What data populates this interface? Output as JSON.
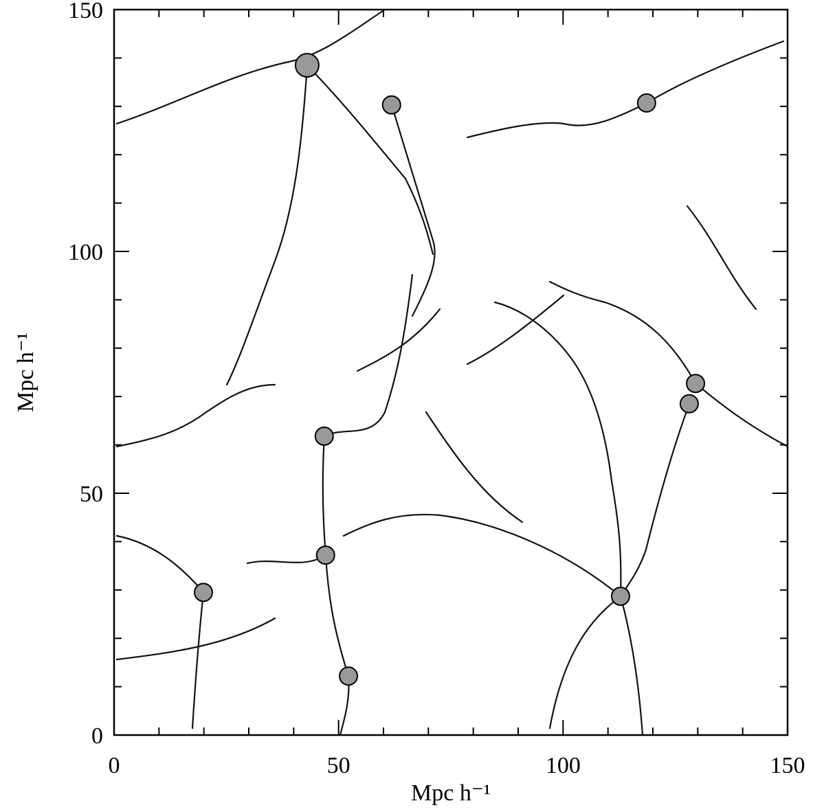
{
  "chart_data": {
    "type": "scatter",
    "xlabel": "Mpc h⁻¹",
    "ylabel": "Mpc h⁻¹",
    "xlim": [
      0,
      150
    ],
    "ylim": [
      0,
      150
    ],
    "xticks": [
      0,
      50,
      100,
      150
    ],
    "yticks": [
      0,
      50,
      100,
      150
    ],
    "xminorticks": [
      10,
      20,
      30,
      40,
      60,
      70,
      80,
      90,
      110,
      120,
      130,
      140
    ],
    "yminorticks": [
      10,
      20,
      30,
      40,
      60,
      70,
      80,
      90,
      110,
      120,
      130,
      140
    ],
    "series": [
      {
        "color": "#999999",
        "x": [
          43.0,
          61.8,
          118.6,
          129.5,
          128.1,
          46.8,
          47.1,
          19.9,
          112.8,
          52.2
        ],
        "values": [
          138.5,
          130.3,
          130.7,
          72.7,
          68.5,
          61.8,
          37.2,
          29.5,
          28.7,
          12.2
        ],
        "sizes": [
          17,
          13,
          13,
          13,
          13,
          13,
          13,
          13,
          13,
          13
        ]
      }
    ]
  }
}
